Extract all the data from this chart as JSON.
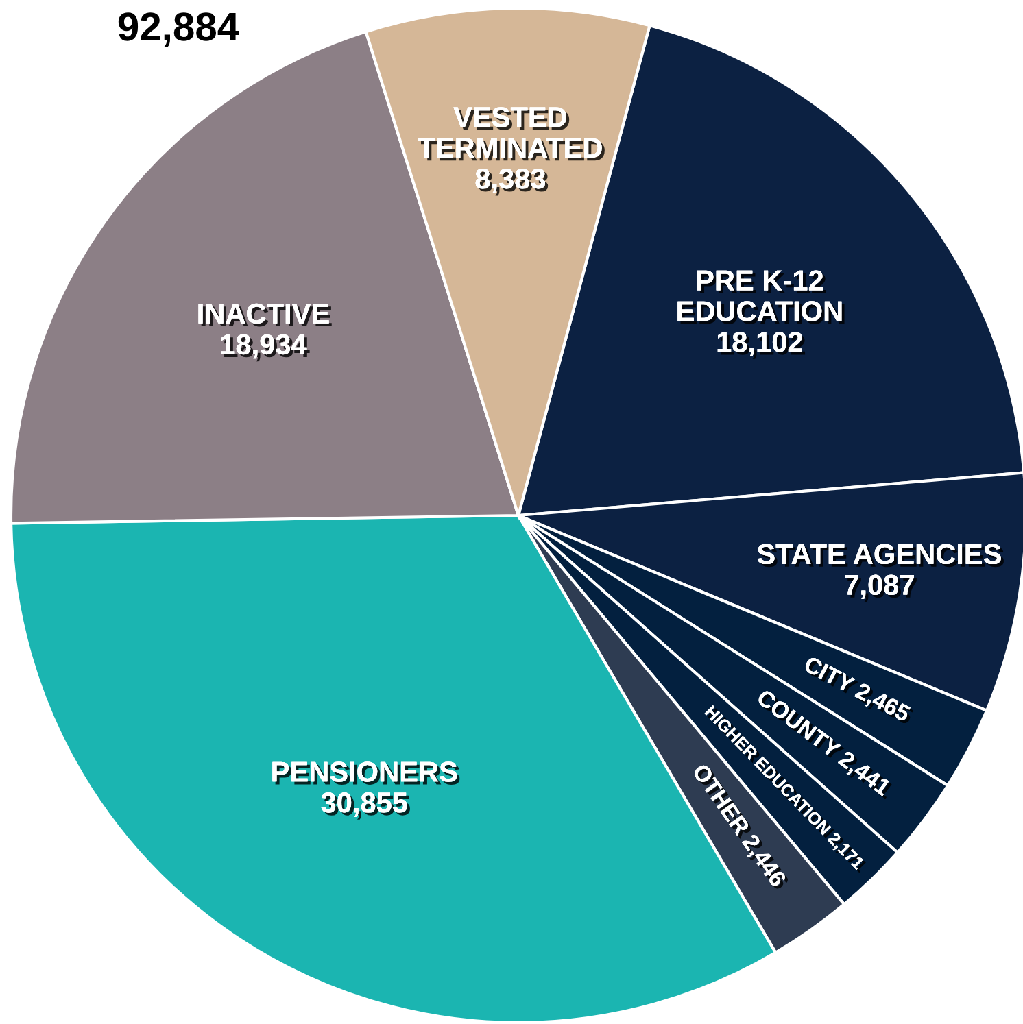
{
  "chart_data": {
    "type": "pie",
    "title": "92,884",
    "categories": [
      "PRE K-12\nEDUCATION",
      "STATE AGENCIES",
      "CITY",
      "COUNTY",
      "HIGHER EDUCATION",
      "OTHER",
      "PENSIONERS",
      "INACTIVE",
      "VESTED\nTERMINATED"
    ],
    "values": [
      18102,
      7087,
      2465,
      2441,
      2171,
      2446,
      30855,
      18934,
      8383
    ],
    "value_labels": [
      "18,102",
      "7,087",
      "2,465",
      "2,441",
      "2,171",
      "2,446",
      "30,855",
      "18,934",
      "8,383"
    ],
    "colors": [
      "#0c2142",
      "#0c2142",
      "#03203f",
      "#03203f",
      "#03203f",
      "#2e3c52",
      "#1bb5b1",
      "#8c7f86",
      "#d5b797"
    ],
    "legend": false
  }
}
